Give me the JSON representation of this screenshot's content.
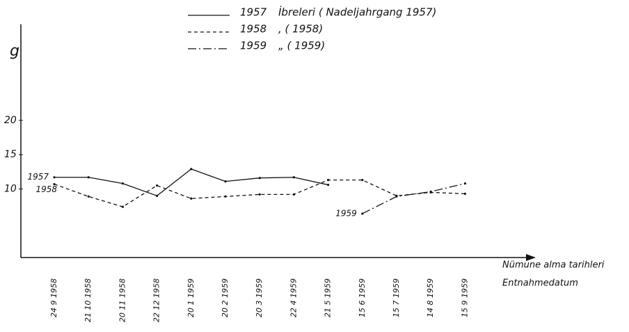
{
  "chart_data": {
    "type": "line",
    "y_label": "g",
    "x_label": [
      "Nümune alma tarihleri",
      "Entnahmedatum"
    ],
    "categories": [
      "24 9 1958",
      "21 10 1958",
      "20 11 1958",
      "22 12 1958",
      "20 1 1959",
      "20 2 1959",
      "20 3 1959",
      "22 4 1959",
      "21 5 1959",
      "15 6 1959",
      "15 7 1959",
      "14 8 1959",
      "15 9 1959"
    ],
    "series": [
      {
        "name": "1957",
        "legend_text": "İbreleri ( Nadeljahrgang 1957)",
        "color": "#111111",
        "dash": "none",
        "values": [
          11.7,
          11.7,
          10.8,
          9.0,
          12.9,
          11.1,
          11.6,
          11.7,
          10.6,
          null,
          null,
          null,
          null
        ]
      },
      {
        "name": "1958",
        "legend_text": ",  (  1958)",
        "color": "#111111",
        "dash": "5,4",
        "values": [
          10.7,
          8.9,
          7.4,
          10.5,
          8.6,
          8.9,
          9.2,
          9.2,
          11.3,
          11.3,
          9.0,
          9.5,
          9.3
        ]
      },
      {
        "name": "1959",
        "legend_text": "„  (  1959)",
        "color": "#111111",
        "dash": "12,4,2,4",
        "values": [
          null,
          null,
          null,
          null,
          null,
          null,
          null,
          null,
          null,
          6.4,
          8.9,
          9.6,
          10.8
        ]
      }
    ],
    "ylim": [
      0,
      34
    ],
    "yticks": [
      10,
      15,
      20
    ]
  }
}
